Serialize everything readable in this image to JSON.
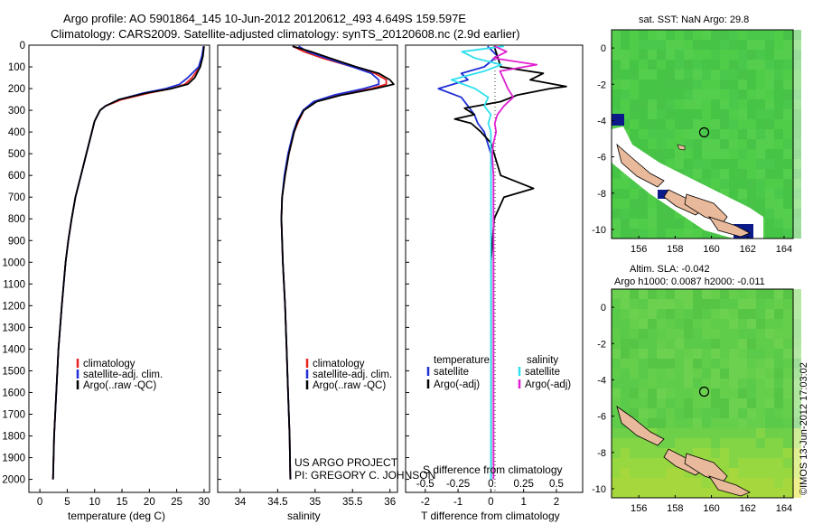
{
  "header": {
    "line1": "Argo profile: AO 5901864_145 10-Jun-2012 20120612_493 4.649S 159.597E",
    "line2": "Climatology: CARS2009. Satellite-adjusted climatology: synTS_20120608.nc (2.9d earlier)"
  },
  "colors": {
    "clim": "#e8201e",
    "sat": "#1f2fd6",
    "argo": "#000000",
    "sat_s": "#30e0f0",
    "argo_s": "#e020d0",
    "ocean": "#4cc94c",
    "land": "#e9b99b"
  },
  "chart_data": [
    {
      "type": "line",
      "id": "temperature",
      "xlabel": "temperature (deg C)",
      "ylabel": "",
      "xlim": [
        -2,
        31
      ],
      "ylim": [
        0,
        2060
      ],
      "xticks": [
        0,
        5,
        10,
        15,
        20,
        25,
        30
      ],
      "yticks": [
        0,
        100,
        200,
        300,
        400,
        500,
        600,
        700,
        800,
        900,
        1000,
        1100,
        1200,
        1300,
        1400,
        1500,
        1600,
        1700,
        1800,
        1900,
        2000
      ],
      "legend": [
        "climatology",
        "satellite-adj. clim.",
        "Argo(..raw -QC)"
      ],
      "series": [
        {
          "name": "climatology",
          "color": "clim",
          "pressure": [
            5,
            50,
            100,
            150,
            180,
            200,
            220,
            250,
            280,
            300,
            350,
            400,
            500,
            600,
            700,
            800,
            900,
            1000,
            1200,
            1400,
            1600,
            1800,
            2000
          ],
          "values": [
            29.9,
            29.7,
            29.2,
            27.8,
            26.5,
            24,
            20,
            15,
            12,
            11,
            10,
            9.5,
            8.5,
            7.5,
            6.5,
            5.8,
            5.2,
            4.7,
            4,
            3.4,
            3,
            2.6,
            2.4
          ]
        },
        {
          "name": "satellite-adj. clim.",
          "color": "sat",
          "pressure": [
            5,
            50,
            100,
            150,
            180,
            200,
            220,
            250,
            280,
            300,
            350,
            400,
            500,
            600,
            700,
            800,
            900,
            1000,
            1200,
            1400,
            1600,
            1800,
            2000
          ],
          "values": [
            29.9,
            29.6,
            29,
            27,
            25.5,
            23,
            19,
            14.5,
            12,
            11,
            10,
            9.5,
            8.5,
            7.5,
            6.5,
            5.8,
            5.2,
            4.7,
            4,
            3.4,
            3,
            2.6,
            2.4
          ]
        },
        {
          "name": "Argo(..raw -QC)",
          "color": "argo",
          "pressure": [
            5,
            50,
            100,
            150,
            180,
            200,
            220,
            250,
            280,
            300,
            350,
            400,
            500,
            600,
            700,
            800,
            900,
            1000,
            1200,
            1400,
            1600,
            1800,
            2000
          ],
          "values": [
            30,
            29.8,
            29.3,
            28.3,
            27,
            24,
            19.5,
            14.5,
            12,
            11,
            10,
            9.5,
            8.5,
            7.5,
            6.5,
            5.8,
            5.2,
            4.7,
            4,
            3.4,
            3,
            2.6,
            2.4
          ]
        }
      ]
    },
    {
      "type": "line",
      "id": "salinity",
      "xlabel": "salinity",
      "xlim": [
        33.7,
        36.1
      ],
      "ylim": [
        0,
        2060
      ],
      "xticks": [
        34,
        34.5,
        35,
        35.5,
        36
      ],
      "legend": [
        "climatology",
        "satellite-adj. clim.",
        "Argo(..raw -QC)"
      ],
      "series": [
        {
          "name": "climatology",
          "color": "clim",
          "pressure": [
            5,
            30,
            60,
            100,
            130,
            160,
            180,
            200,
            230,
            260,
            300,
            350,
            400,
            500,
            600,
            700,
            800,
            900,
            1000,
            1200,
            1400,
            1600,
            1800,
            2000
          ],
          "values": [
            34.7,
            34.85,
            35.1,
            35.5,
            35.8,
            35.95,
            35.95,
            35.75,
            35.3,
            35.0,
            34.85,
            34.78,
            34.72,
            34.65,
            34.6,
            34.56,
            34.55,
            34.56,
            34.57,
            34.6,
            34.62,
            34.64,
            34.66,
            34.67
          ]
        },
        {
          "name": "satellite-adj. clim.",
          "color": "sat",
          "pressure": [
            5,
            30,
            60,
            100,
            130,
            160,
            180,
            200,
            230,
            260,
            300,
            350,
            400,
            500,
            600,
            700,
            800,
            900,
            1000,
            1200,
            1400,
            1600,
            1800,
            2000
          ],
          "values": [
            34.78,
            34.9,
            35.15,
            35.5,
            35.75,
            35.85,
            35.85,
            35.65,
            35.25,
            34.98,
            34.84,
            34.76,
            34.71,
            34.64,
            34.59,
            34.56,
            34.55,
            34.56,
            34.57,
            34.6,
            34.62,
            34.64,
            34.66,
            34.67
          ]
        },
        {
          "name": "Argo(..raw -QC)",
          "color": "argo",
          "pressure": [
            5,
            30,
            60,
            100,
            130,
            160,
            180,
            200,
            230,
            260,
            300,
            350,
            400,
            500,
            600,
            700,
            800,
            900,
            1000,
            1200,
            1400,
            1600,
            1800,
            2000
          ],
          "values": [
            34.7,
            34.95,
            35.2,
            35.55,
            35.85,
            36.0,
            36.05,
            35.8,
            35.35,
            35.02,
            34.85,
            34.77,
            34.72,
            34.65,
            34.6,
            34.56,
            34.55,
            34.56,
            34.57,
            34.6,
            34.62,
            34.64,
            34.66,
            34.67
          ]
        }
      ]
    },
    {
      "type": "line",
      "id": "difference",
      "xlabel": "T difference from climatology",
      "xlabel_top": "S difference from climatology",
      "xlim": [
        -2.6,
        2.8
      ],
      "ylim": [
        0,
        2060
      ],
      "xticks": [
        -2,
        -1,
        0,
        1,
        2
      ],
      "xticks_s_labels": [
        "-0.5",
        "-0.25",
        "0",
        "0.25",
        "0.5"
      ],
      "legend_headers": [
        "temperature",
        "salinity"
      ],
      "legend": [
        "satellite",
        "Argo(-adj)",
        "satellite",
        "Argo(-adj)"
      ],
      "series": [
        {
          "name": "temperature satellite",
          "color": "sat",
          "pressure": [
            5,
            50,
            100,
            130,
            160,
            200,
            240,
            280,
            320,
            360,
            400,
            450,
            500,
            600,
            700,
            800,
            1000,
            1500,
            2000
          ],
          "values": [
            -0.1,
            0.2,
            -0.2,
            -0.9,
            -0.7,
            -1.6,
            -0.9,
            -0.7,
            -0.5,
            -0.4,
            -0.2,
            -0.1,
            0,
            0,
            0,
            0,
            0,
            0,
            0
          ]
        },
        {
          "name": "temperature Argo(-adj)",
          "color": "argo",
          "pressure": [
            5,
            50,
            100,
            130,
            160,
            190,
            200,
            230,
            260,
            290,
            320,
            340,
            360,
            400,
            450,
            500,
            600,
            660,
            700,
            800,
            1000,
            1500,
            2000
          ],
          "values": [
            0.1,
            0.2,
            0.3,
            1.6,
            1.2,
            2.3,
            1.8,
            0.8,
            0.3,
            -0.8,
            -0.5,
            -1.1,
            -0.6,
            -0.3,
            0,
            0.1,
            0.3,
            1.3,
            0.4,
            0.1,
            0,
            0,
            0
          ]
        },
        {
          "name": "salinity satellite",
          "color": "sat_s",
          "pressure": [
            5,
            30,
            60,
            90,
            120,
            160,
            200,
            240,
            280,
            320,
            360,
            400,
            450,
            500,
            600,
            800,
            1000,
            1500,
            2000
          ],
          "values": [
            0.1,
            -0.22,
            -0.12,
            0.08,
            -0.05,
            -0.3,
            -0.12,
            -0.02,
            -0.05,
            0,
            -0.02,
            0,
            0,
            0,
            0,
            0,
            0,
            0,
            0
          ]
        },
        {
          "name": "salinity Argo(-adj)",
          "color": "argo_s",
          "pressure": [
            5,
            30,
            60,
            90,
            120,
            160,
            200,
            240,
            280,
            320,
            360,
            400,
            450,
            500,
            600,
            800,
            1000,
            1500,
            2000
          ],
          "values": [
            0.03,
            0.12,
            0.02,
            0.35,
            0.07,
            0.1,
            0.13,
            0.17,
            0.1,
            0.05,
            0.03,
            0.04,
            0.02,
            0.01,
            0.02,
            0.02,
            0.02,
            0.02,
            0.02
          ]
        }
      ]
    },
    {
      "type": "heatmap",
      "id": "sst-map",
      "title": "sat. SST: NaN Argo: 29.8",
      "xlim": [
        154.5,
        164.5
      ],
      "ylim": [
        -10.5,
        1
      ],
      "xticks": [
        156,
        158,
        160,
        162,
        164
      ],
      "yticks": [
        0,
        -2,
        -4,
        -6,
        -8,
        -10
      ],
      "marker": {
        "lon": 159.6,
        "lat": -4.65
      }
    },
    {
      "type": "heatmap",
      "id": "sla-map",
      "title_line1": "Altim. SLA: -0.042",
      "title_line2": "Argo h1000: 0.0087 h2000: -0.011",
      "xlim": [
        154.5,
        164.5
      ],
      "ylim": [
        -10.5,
        1
      ],
      "xticks": [
        156,
        158,
        160,
        162,
        164
      ],
      "yticks": [
        0,
        -2,
        -4,
        -6,
        -8,
        -10
      ],
      "marker": {
        "lon": 159.6,
        "lat": -4.65
      }
    }
  ],
  "annotations": {
    "project": "US ARGO PROJECT",
    "pi": "PI: GREGORY C. JOHNSON",
    "stamp": "©IMOS 13-Jun-2012 17:03:02"
  }
}
